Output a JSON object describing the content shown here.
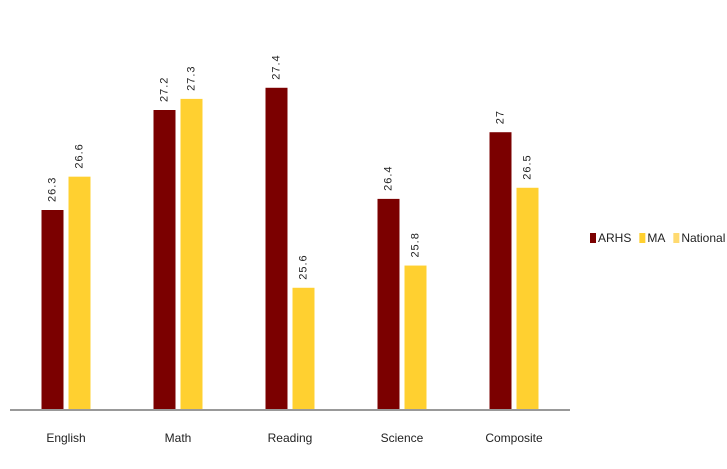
{
  "chart_data": {
    "type": "bar",
    "categories": [
      "English",
      "Math",
      "Reading",
      "Science",
      "Composite"
    ],
    "series": [
      {
        "name": "ARHS",
        "color": "#7b0000",
        "values": [
          26.3,
          27.2,
          27.4,
          26.4,
          27
        ]
      },
      {
        "name": "MA",
        "color": "#ffd030",
        "values": [
          26.6,
          27.3,
          25.6,
          25.8,
          26.5
        ]
      },
      {
        "name": "National",
        "color": "#ffda70",
        "values": [
          null,
          null,
          null,
          null,
          null
        ]
      }
    ],
    "ylim": [
      24.5,
      28.1
    ],
    "legend": "right"
  }
}
